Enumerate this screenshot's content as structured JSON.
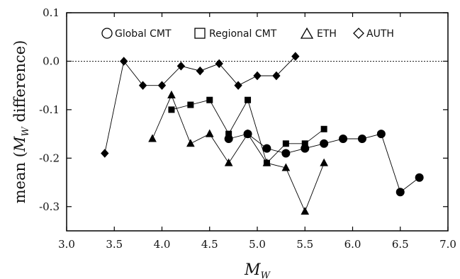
{
  "chart_data": {
    "type": "line",
    "xlabel_main": "M",
    "xlabel_sub": "W",
    "ylabel_pre": "mean (",
    "ylabel_main": "M",
    "ylabel_sub": "W",
    "ylabel_post": " difference)",
    "xlim": [
      3.0,
      7.0
    ],
    "ylim": [
      -0.35,
      0.1
    ],
    "x_ticks": [
      "3.0",
      "3.5",
      "4.0",
      "4.5",
      "5.0",
      "5.5",
      "6.0",
      "6.5",
      "7.0"
    ],
    "y_ticks": [
      "0.1",
      "0.0",
      "-0.1",
      "-0.2",
      "-0.3"
    ],
    "reference_line": 0.0,
    "legend_position": "top-center",
    "series": [
      {
        "name": "Global CMT",
        "marker": "circle",
        "x": [
          4.7,
          4.9,
          5.1,
          5.3,
          5.5,
          5.7,
          5.9,
          6.1,
          6.3,
          6.5,
          6.7
        ],
        "y": [
          -0.16,
          -0.15,
          -0.18,
          -0.19,
          -0.18,
          -0.17,
          -0.16,
          -0.16,
          -0.15,
          -0.27,
          -0.24
        ]
      },
      {
        "name": "Regional CMT",
        "marker": "square",
        "x": [
          4.1,
          4.3,
          4.5,
          4.7,
          4.9,
          5.1,
          5.3,
          5.5,
          5.7
        ],
        "y": [
          -0.1,
          -0.09,
          -0.08,
          -0.15,
          -0.08,
          -0.21,
          -0.17,
          -0.17,
          -0.14
        ]
      },
      {
        "name": "ETH",
        "marker": "triangle",
        "x": [
          3.9,
          4.1,
          4.3,
          4.5,
          4.7,
          4.9,
          5.1,
          5.3,
          5.5,
          5.7
        ],
        "y": [
          -0.16,
          -0.07,
          -0.17,
          -0.15,
          -0.21,
          -0.15,
          -0.21,
          -0.22,
          -0.31,
          -0.21
        ]
      },
      {
        "name": "AUTH",
        "marker": "diamond",
        "x": [
          3.4,
          3.6,
          3.8,
          4.0,
          4.2,
          4.4,
          4.6,
          4.8,
          5.0,
          5.2,
          5.4
        ],
        "y": [
          -0.19,
          0.0,
          -0.05,
          -0.05,
          -0.01,
          -0.02,
          -0.005,
          -0.05,
          -0.03,
          -0.03,
          0.01
        ]
      }
    ]
  }
}
